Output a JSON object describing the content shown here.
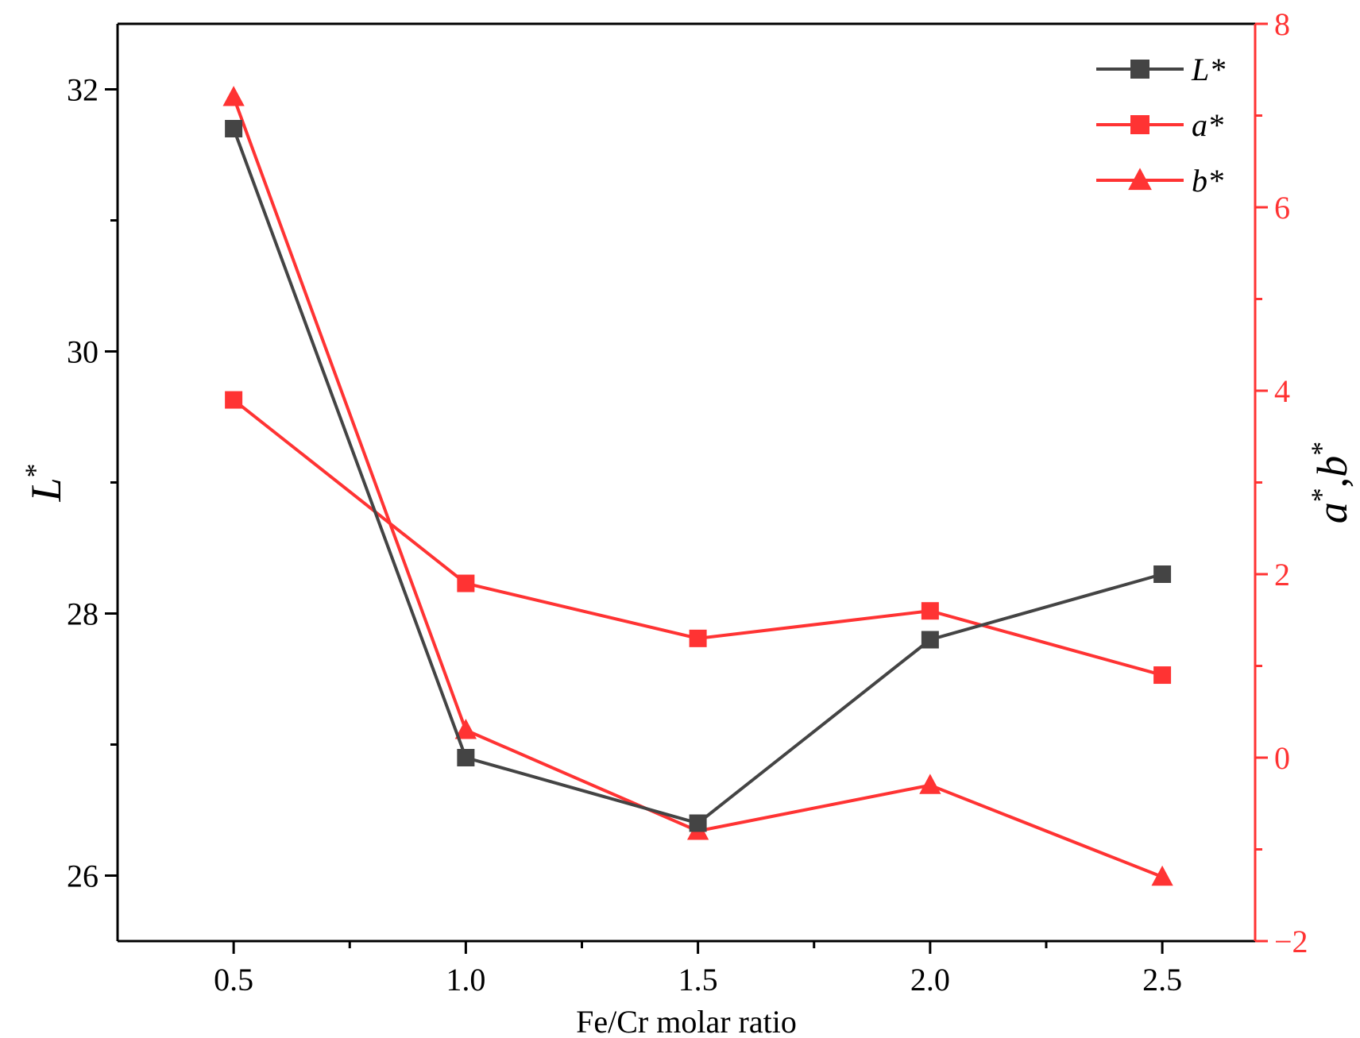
{
  "chart_data": {
    "type": "line",
    "x": [
      0.5,
      1.0,
      1.5,
      2.0,
      2.5
    ],
    "xlabel": "Fe/Cr molar ratio",
    "xlim": [
      0.25,
      2.7
    ],
    "x_ticks": [
      "0.5",
      "1.0",
      "1.5",
      "2.0",
      "2.5"
    ],
    "x_minor_ticks": [
      0.75,
      1.25,
      1.75,
      2.25
    ],
    "left_axis": {
      "label": "L",
      "label_sup": "*",
      "ylim": [
        25.5,
        32.5
      ],
      "ticks": [
        "26",
        "28",
        "30",
        "32"
      ],
      "minor_ticks": [
        27,
        29,
        31
      ],
      "color": "#000000"
    },
    "right_axis": {
      "label": "a",
      "label_sup": "*",
      "label_sep": ",",
      "label2": "b",
      "label2_sup": "*",
      "ylim": [
        -2,
        8
      ],
      "ticks": [
        "−2",
        "0",
        "2",
        "4",
        "6",
        "8"
      ],
      "minor_ticks": [
        -1,
        1,
        3,
        5,
        7
      ],
      "color": "#ff3333"
    },
    "series": [
      {
        "name": "L*",
        "axis": "left",
        "marker": "square",
        "color": "#444444",
        "values": [
          31.7,
          26.9,
          26.4,
          27.8,
          28.3
        ]
      },
      {
        "name": "a*",
        "axis": "right",
        "marker": "square",
        "color": "#ff3333",
        "values": [
          3.9,
          1.9,
          1.3,
          1.6,
          0.9
        ]
      },
      {
        "name": "b*",
        "axis": "right",
        "marker": "triangle",
        "color": "#ff3333",
        "values": [
          7.2,
          0.3,
          -0.8,
          -0.3,
          -1.3
        ]
      }
    ],
    "legend_position": "top-right"
  }
}
